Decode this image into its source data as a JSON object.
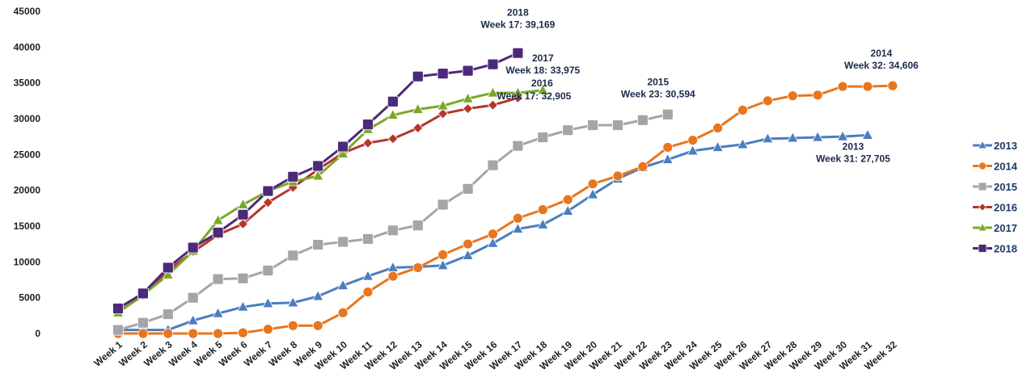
{
  "chart_data": {
    "type": "line",
    "title": "",
    "xlabel": "",
    "ylabel": "",
    "ylim": [
      0,
      45000
    ],
    "yticks": [
      0,
      5000,
      10000,
      15000,
      20000,
      25000,
      30000,
      35000,
      40000,
      45000
    ],
    "grid": false,
    "legend_position": "right",
    "categories": [
      "Week 1",
      "Week 2",
      "Week 3",
      "Week 4",
      "Week 5",
      "Week 6",
      "Week 7",
      "Week 8",
      "Week 9",
      "Week 10",
      "Week 11",
      "Week 12",
      "Week 13",
      "Week 14",
      "Week 15",
      "Week 16",
      "Week 17",
      "Week 18",
      "Week 19",
      "Week 20",
      "Week 21",
      "Week 22",
      "Week 23",
      "Week 24",
      "Week 25",
      "Week 26",
      "Week 27",
      "Week 28",
      "Week 29",
      "Week 30",
      "Week 31",
      "Week 32"
    ],
    "series": [
      {
        "name": "2013",
        "color": "#4a7ebf",
        "marker": "triangle",
        "values": [
          500,
          500,
          500,
          1800,
          2800,
          3700,
          4200,
          4300,
          5200,
          6700,
          8000,
          9200,
          9300,
          9500,
          10900,
          12600,
          14600,
          15200,
          17100,
          19400,
          21600,
          23200,
          24300,
          25500,
          26000,
          26400,
          27200,
          27300,
          27400,
          27500,
          27705,
          null
        ]
      },
      {
        "name": "2014",
        "color": "#e8761e",
        "marker": "circle",
        "values": [
          0,
          0,
          0,
          0,
          0,
          100,
          600,
          1100,
          1100,
          2900,
          5800,
          8000,
          9200,
          11000,
          12500,
          13900,
          16100,
          17300,
          18700,
          20900,
          22000,
          23300,
          26000,
          27000,
          28700,
          31200,
          32500,
          33200,
          33300,
          34500,
          34500,
          34606
        ]
      },
      {
        "name": "2015",
        "color": "#a5a5a5",
        "marker": "square",
        "values": [
          500,
          1500,
          2700,
          5000,
          7600,
          7700,
          8800,
          10900,
          12400,
          12800,
          13200,
          14400,
          15100,
          18000,
          20200,
          23500,
          26200,
          27400,
          28400,
          29100,
          29100,
          29800,
          30594,
          null,
          null,
          null,
          null,
          null,
          null,
          null,
          null,
          null
        ]
      },
      {
        "name": "2016",
        "color": "#b5352b",
        "marker": "diamond",
        "values": [
          3000,
          5300,
          8800,
          11400,
          13800,
          15300,
          18300,
          20400,
          22900,
          25200,
          26600,
          27200,
          28700,
          30700,
          31400,
          31900,
          32905,
          null,
          null,
          null,
          null,
          null,
          null,
          null,
          null,
          null,
          null,
          null,
          null,
          null,
          null,
          null
        ]
      },
      {
        "name": "2017",
        "color": "#7aa826",
        "marker": "triangle",
        "values": [
          2900,
          5400,
          8200,
          11500,
          15800,
          18000,
          19900,
          21200,
          22000,
          25100,
          28500,
          30500,
          31300,
          31800,
          32800,
          33600,
          33600,
          33975,
          null,
          null,
          null,
          null,
          null,
          null,
          null,
          null,
          null,
          null,
          null,
          null,
          null,
          null
        ]
      },
      {
        "name": "2018",
        "color": "#4b2a7a",
        "marker": "square",
        "values": [
          3500,
          5600,
          9200,
          12000,
          14100,
          16600,
          19900,
          21900,
          23400,
          26100,
          29200,
          32400,
          35900,
          36300,
          36700,
          37600,
          39169,
          null,
          null,
          null,
          null,
          null,
          null,
          null,
          null,
          null,
          null,
          null,
          null,
          null,
          null,
          null
        ]
      }
    ],
    "annotations": [
      {
        "series": "2018",
        "line1": "2018",
        "line2": "Week 17: 39,169"
      },
      {
        "series": "2017",
        "line1": "2017",
        "line2": "Week 18: 33,975"
      },
      {
        "series": "2016",
        "line1": "2016",
        "line2": "Week 17: 32,905"
      },
      {
        "series": "2015",
        "line1": "2015",
        "line2": "Week 23: 30,594"
      },
      {
        "series": "2014",
        "line1": "2014",
        "line2": "Week 32: 34,606"
      },
      {
        "series": "2013",
        "line1": "2013",
        "line2": "Week 31: 27,705"
      }
    ]
  }
}
